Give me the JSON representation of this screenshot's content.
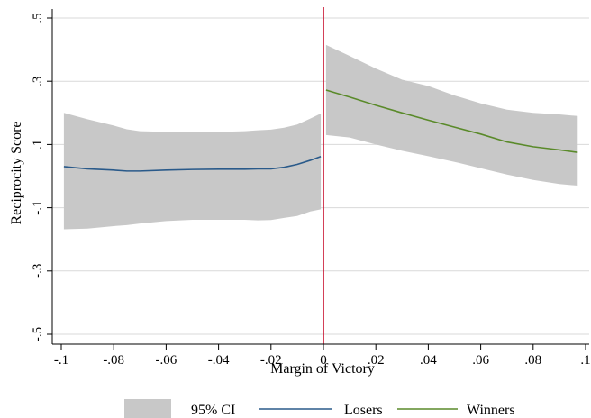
{
  "chart_data": {
    "type": "line",
    "xlabel": "Margin of Victory",
    "ylabel": "Reciprocity Score",
    "xlim": [
      -0.1,
      0.1
    ],
    "ylim": [
      -0.5,
      0.5
    ],
    "x_ticks": [
      {
        "value": -0.1,
        "label": "-.1"
      },
      {
        "value": -0.08,
        "label": "-.08"
      },
      {
        "value": -0.06,
        "label": "-.06"
      },
      {
        "value": -0.04,
        "label": "-.04"
      },
      {
        "value": -0.02,
        "label": "-.02"
      },
      {
        "value": 0,
        "label": "0"
      },
      {
        "value": 0.02,
        "label": ".02"
      },
      {
        "value": 0.04,
        "label": ".04"
      },
      {
        "value": 0.06,
        "label": ".06"
      },
      {
        "value": 0.08,
        "label": ".08"
      },
      {
        "value": 0.1,
        "label": ".1"
      }
    ],
    "y_ticks": [
      {
        "value": -0.5,
        "label": "-.5"
      },
      {
        "value": -0.3,
        "label": "-.3"
      },
      {
        "value": -0.1,
        "label": "-.1"
      },
      {
        "value": 0.1,
        "label": ".1"
      },
      {
        "value": 0.3,
        "label": ".3"
      },
      {
        "value": 0.5,
        "label": ".5"
      }
    ],
    "grid": true,
    "cutoff": {
      "x": 0,
      "color": "#c8102e"
    },
    "legend": {
      "position": "bottom",
      "entries": [
        {
          "label": "95% CI",
          "kind": "area",
          "color": "#c8c8c8"
        },
        {
          "label": "Losers",
          "kind": "line",
          "color": "#2a5a8a"
        },
        {
          "label": "Winners",
          "kind": "line",
          "color": "#5a8a2a"
        }
      ]
    },
    "series": [
      {
        "name": "Losers",
        "color": "#2a5a8a",
        "ci_color": "#c8c8c8",
        "x": [
          -0.099,
          -0.09,
          -0.08,
          -0.075,
          -0.07,
          -0.06,
          -0.05,
          -0.04,
          -0.03,
          -0.025,
          -0.02,
          -0.015,
          -0.01,
          -0.005,
          -0.001
        ],
        "y": [
          0.03,
          0.023,
          0.019,
          0.016,
          0.016,
          0.019,
          0.021,
          0.022,
          0.022,
          0.023,
          0.023,
          0.028,
          0.037,
          0.05,
          0.062
        ],
        "ci_lower": [
          -0.168,
          -0.166,
          -0.158,
          -0.155,
          -0.15,
          -0.142,
          -0.138,
          -0.138,
          -0.138,
          -0.14,
          -0.139,
          -0.132,
          -0.126,
          -0.112,
          -0.105
        ],
        "ci_upper": [
          0.2,
          0.18,
          0.16,
          0.148,
          0.142,
          0.14,
          0.14,
          0.14,
          0.142,
          0.145,
          0.147,
          0.153,
          0.163,
          0.182,
          0.198
        ]
      },
      {
        "name": "Winners",
        "color": "#5a8a2a",
        "ci_color": "#c8c8c8",
        "x": [
          0.001,
          0.01,
          0.02,
          0.03,
          0.04,
          0.05,
          0.06,
          0.07,
          0.08,
          0.09,
          0.097
        ],
        "y": [
          0.272,
          0.25,
          0.224,
          0.2,
          0.177,
          0.155,
          0.133,
          0.108,
          0.093,
          0.083,
          0.075
        ],
        "ci_lower": [
          0.13,
          0.122,
          0.1,
          0.08,
          0.063,
          0.045,
          0.025,
          0.005,
          -0.012,
          -0.025,
          -0.03
        ],
        "ci_upper": [
          0.415,
          0.38,
          0.34,
          0.305,
          0.285,
          0.255,
          0.23,
          0.21,
          0.2,
          0.195,
          0.19
        ]
      }
    ]
  }
}
